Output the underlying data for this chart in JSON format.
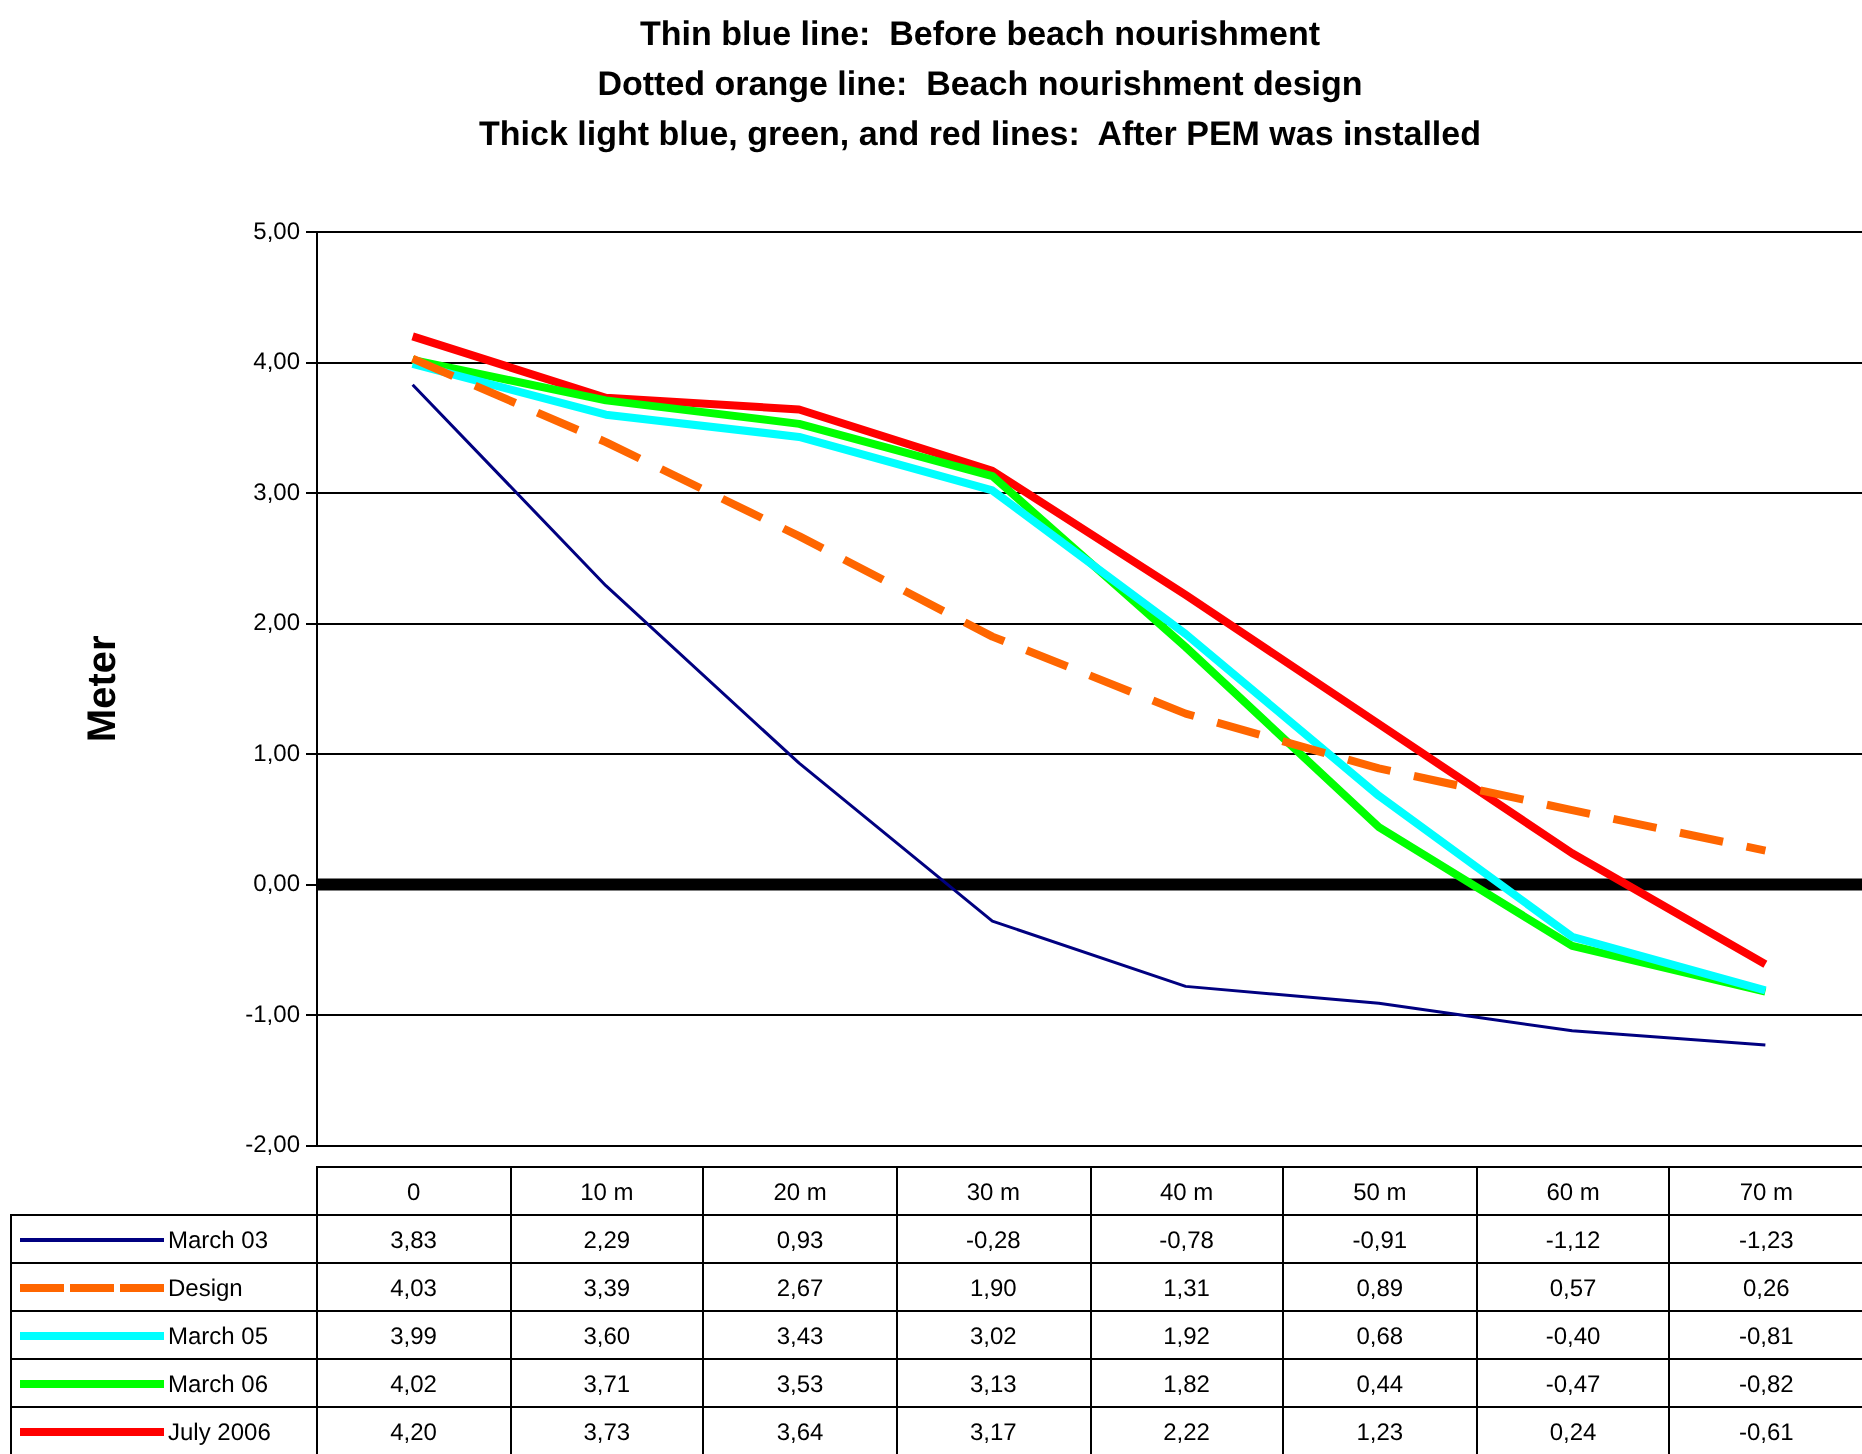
{
  "chart_data": {
    "type": "line",
    "title": "Thin blue line:  Before beach nourishment\nDotted orange line:  Beach nourishment design\nThick light blue, green, and red lines:  After PEM was installed",
    "ylabel": "Meter",
    "categories": [
      "0",
      "10 m",
      "20 m",
      "30 m",
      "40 m",
      "50 m",
      "60 m",
      "70 m"
    ],
    "series": [
      {
        "name": "March 03",
        "color": "#000080",
        "values": [
          3.83,
          2.29,
          0.93,
          -0.28,
          -0.78,
          -0.91,
          -1.12,
          -1.23
        ],
        "value_labels": [
          "3,83",
          "2,29",
          "0,93",
          "-0,28",
          "-0,78",
          "-0,91",
          "-1,12",
          "-1,23"
        ]
      },
      {
        "name": "Design",
        "color": "#ff6600",
        "line_style": "dashed",
        "values": [
          4.03,
          3.39,
          2.67,
          1.9,
          1.31,
          0.89,
          0.57,
          0.26
        ],
        "value_labels": [
          "4,03",
          "3,39",
          "2,67",
          "1,90",
          "1,31",
          "0,89",
          "0,57",
          "0,26"
        ]
      },
      {
        "name": "March 05",
        "color": "#00ffff",
        "values": [
          3.99,
          3.6,
          3.43,
          3.02,
          1.92,
          0.68,
          -0.4,
          -0.81
        ],
        "value_labels": [
          "3,99",
          "3,60",
          "3,43",
          "3,02",
          "1,92",
          "0,68",
          "-0,40",
          "-0,81"
        ]
      },
      {
        "name": "March 06",
        "color": "#00ff00",
        "values": [
          4.02,
          3.71,
          3.53,
          3.13,
          1.82,
          0.44,
          -0.47,
          -0.82
        ],
        "value_labels": [
          "4,02",
          "3,71",
          "3,53",
          "3,13",
          "1,82",
          "0,44",
          "-0,47",
          "-0,82"
        ]
      },
      {
        "name": "July 2006",
        "color": "#ff0000",
        "values": [
          4.2,
          3.73,
          3.64,
          3.17,
          2.22,
          1.23,
          0.24,
          -0.61
        ],
        "value_labels": [
          "4,20",
          "3,73",
          "3,64",
          "3,17",
          "2,22",
          "1,23",
          "0,24",
          "-0,61"
        ]
      }
    ],
    "ylim": [
      -2,
      5
    ],
    "yticks": [
      {
        "value": -2,
        "label": "-2,00"
      },
      {
        "value": -1,
        "label": "-1,00"
      },
      {
        "value": 0,
        "label": "0,00"
      },
      {
        "value": 1,
        "label": "1,00"
      },
      {
        "value": 2,
        "label": "2,00"
      },
      {
        "value": 3,
        "label": "3,00"
      },
      {
        "value": 4,
        "label": "4,00"
      },
      {
        "value": 5,
        "label": "5,00"
      }
    ],
    "ref_lines": [
      {
        "axis": "y",
        "value": 0,
        "color": "#000000"
      }
    ],
    "grid": "y",
    "legend": "bottom left",
    "marker": "none",
    "line_style": "solid"
  }
}
